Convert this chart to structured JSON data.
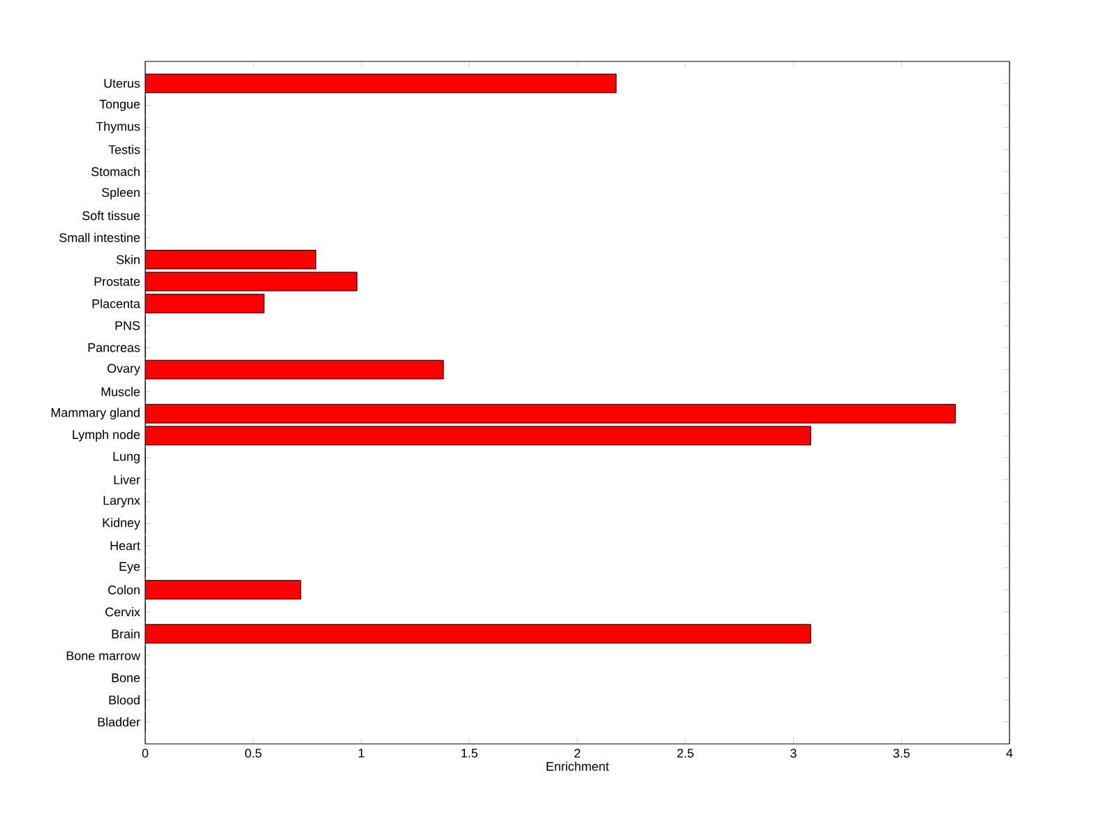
{
  "chart_data": {
    "type": "bar",
    "orientation": "horizontal",
    "xlabel": "Enrichment",
    "categories": [
      "Uterus",
      "Tongue",
      "Thymus",
      "Testis",
      "Stomach",
      "Spleen",
      "Soft tissue",
      "Small intestine",
      "Skin",
      "Prostate",
      "Placenta",
      "PNS",
      "Pancreas",
      "Ovary",
      "Muscle",
      "Mammary gland",
      "Lymph node",
      "Lung",
      "Liver",
      "Larynx",
      "Kidney",
      "Heart",
      "Eye",
      "Colon",
      "Cervix",
      "Brain",
      "Bone marrow",
      "Bone",
      "Blood",
      "Bladder"
    ],
    "values": [
      2.18,
      0,
      0,
      0,
      0,
      0,
      0,
      0,
      0.79,
      0.98,
      0.55,
      0,
      0,
      1.38,
      0,
      3.75,
      3.08,
      0,
      0,
      0,
      0,
      0,
      0,
      0.72,
      0,
      3.08,
      0,
      0,
      0,
      0
    ],
    "color": "#ff0000",
    "xlim": [
      0,
      4
    ],
    "xticks": [
      0,
      0.5,
      1,
      1.5,
      2,
      2.5,
      3,
      3.5,
      4
    ]
  }
}
